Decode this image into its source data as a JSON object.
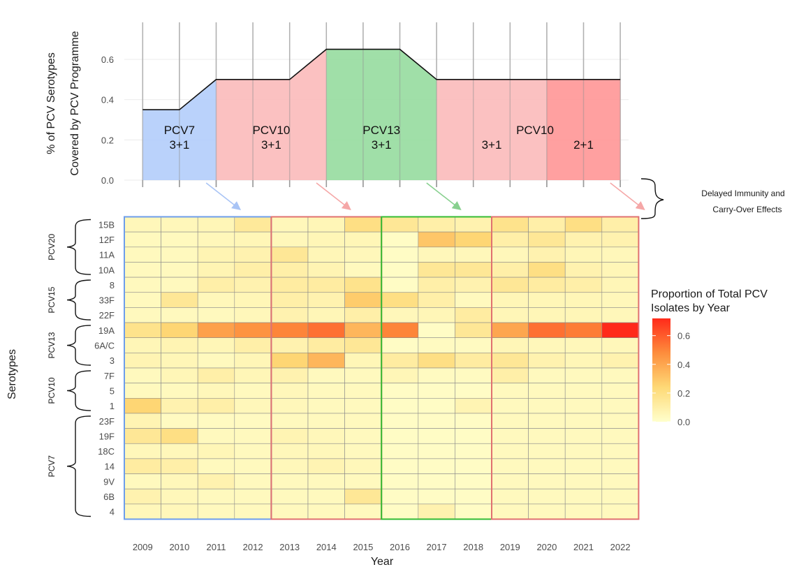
{
  "chart_data": [
    {
      "type": "area",
      "ylabel_line1": "% of PCV Serotypes",
      "ylabel_line2": "Covered by PCV Programme",
      "yticks": [
        "0.0",
        "0.2",
        "0.4",
        "0.6"
      ],
      "ylim": [
        0,
        0.7
      ],
      "years": [
        2009,
        2010,
        2011,
        2012,
        2013,
        2014,
        2015,
        2016,
        2017,
        2018,
        2019,
        2020,
        2021,
        2022
      ],
      "coverage_points": [
        {
          "x": 2009.5,
          "y": 0.35
        },
        {
          "x": 2010.5,
          "y": 0.35
        },
        {
          "x": 2011.5,
          "y": 0.5
        },
        {
          "x": 2012.5,
          "y": 0.5
        },
        {
          "x": 2013.5,
          "y": 0.5
        },
        {
          "x": 2014.5,
          "y": 0.65
        },
        {
          "x": 2015.5,
          "y": 0.65
        },
        {
          "x": 2016.5,
          "y": 0.65
        },
        {
          "x": 2017.5,
          "y": 0.5
        },
        {
          "x": 2018.5,
          "y": 0.5
        },
        {
          "x": 2019.5,
          "y": 0.5
        },
        {
          "x": 2020.5,
          "y": 0.5
        },
        {
          "x": 2021.5,
          "y": 0.5
        },
        {
          "x": 2022.5,
          "y": 0.5
        }
      ],
      "segments": [
        {
          "from": 2009.5,
          "to": 2011.5,
          "color": "#b3cdfb",
          "name": "PCV7",
          "schedule": "3+1"
        },
        {
          "from": 2011.5,
          "to": 2014.5,
          "color": "#fbbaba",
          "name": "PCV10",
          "schedule": "3+1"
        },
        {
          "from": 2014.5,
          "to": 2017.5,
          "color": "#96dc9e",
          "name": "PCV13",
          "schedule": "3+1"
        },
        {
          "from": 2017.5,
          "to": 2020.5,
          "color": "#fbbaba",
          "name": "",
          "schedule": "3+1"
        },
        {
          "from": 2020.5,
          "to": 2022.5,
          "color": "#ff9696",
          "name": "",
          "schedule": "2+1"
        }
      ],
      "extra_label": "PCV10",
      "annotation": {
        "line1": "Delayed Immunity and",
        "line2": "Carry-Over Effects"
      }
    },
    {
      "type": "heatmap",
      "xlabel": "Year",
      "ylabel": "Serotypes",
      "x": [
        2009,
        2010,
        2011,
        2012,
        2013,
        2014,
        2015,
        2016,
        2017,
        2018,
        2019,
        2020,
        2021,
        2022
      ],
      "y": [
        "15B",
        "12F",
        "11A",
        "10A",
        "8",
        "33F",
        "22F",
        "19A",
        "6A/C",
        "3",
        "7F",
        "5",
        "1",
        "23F",
        "19F",
        "18C",
        "14",
        "9V",
        "6B",
        "4"
      ],
      "values": [
        [
          0.05,
          0.05,
          0.06,
          0.14,
          0.05,
          0.06,
          0.2,
          0.15,
          0.1,
          0.08,
          0.18,
          0.1,
          0.2,
          0.1
        ],
        [
          0.04,
          0.04,
          0.05,
          0.06,
          0.05,
          0.06,
          0.06,
          0.02,
          0.3,
          0.25,
          0.1,
          0.15,
          0.08,
          0.08
        ],
        [
          0.04,
          0.04,
          0.07,
          0.08,
          0.15,
          0.06,
          0.05,
          0.02,
          0.05,
          0.05,
          0.05,
          0.08,
          0.06,
          0.05
        ],
        [
          0.04,
          0.04,
          0.07,
          0.1,
          0.1,
          0.07,
          0.04,
          0.02,
          0.15,
          0.15,
          0.1,
          0.2,
          0.08,
          0.06
        ],
        [
          0.04,
          0.04,
          0.1,
          0.08,
          0.12,
          0.12,
          0.18,
          0.02,
          0.1,
          0.08,
          0.15,
          0.12,
          0.1,
          0.06
        ],
        [
          0.04,
          0.15,
          0.05,
          0.06,
          0.1,
          0.08,
          0.28,
          0.2,
          0.1,
          0.04,
          0.06,
          0.06,
          0.06,
          0.05
        ],
        [
          0.04,
          0.04,
          0.04,
          0.05,
          0.08,
          0.06,
          0.1,
          0.05,
          0.06,
          0.12,
          0.06,
          0.06,
          0.06,
          0.05
        ],
        [
          0.18,
          0.25,
          0.42,
          0.46,
          0.5,
          0.55,
          0.35,
          0.5,
          0.02,
          0.15,
          0.4,
          0.55,
          0.52,
          0.72
        ],
        [
          0.06,
          0.07,
          0.06,
          0.1,
          0.08,
          0.12,
          0.15,
          0.02,
          0.03,
          0.03,
          0.06,
          0.05,
          0.05,
          0.05
        ],
        [
          0.07,
          0.06,
          0.04,
          0.06,
          0.25,
          0.35,
          0.06,
          0.12,
          0.2,
          0.12,
          0.15,
          0.08,
          0.06,
          0.08
        ],
        [
          0.04,
          0.06,
          0.1,
          0.06,
          0.08,
          0.04,
          0.04,
          0.06,
          0.03,
          0.03,
          0.1,
          0.04,
          0.04,
          0.04
        ],
        [
          0.04,
          0.04,
          0.05,
          0.04,
          0.05,
          0.04,
          0.04,
          0.02,
          0.02,
          0.02,
          0.04,
          0.04,
          0.04,
          0.04
        ],
        [
          0.25,
          0.08,
          0.1,
          0.05,
          0.05,
          0.04,
          0.04,
          0.02,
          0.02,
          0.07,
          0.04,
          0.04,
          0.04,
          0.04
        ],
        [
          0.07,
          0.03,
          0.03,
          0.03,
          0.04,
          0.04,
          0.04,
          0.02,
          0.02,
          0.02,
          0.04,
          0.04,
          0.04,
          0.04
        ],
        [
          0.15,
          0.2,
          0.04,
          0.04,
          0.07,
          0.05,
          0.04,
          0.02,
          0.02,
          0.02,
          0.04,
          0.04,
          0.04,
          0.04
        ],
        [
          0.05,
          0.05,
          0.06,
          0.04,
          0.05,
          0.05,
          0.04,
          0.02,
          0.02,
          0.02,
          0.04,
          0.04,
          0.04,
          0.04
        ],
        [
          0.12,
          0.1,
          0.04,
          0.04,
          0.05,
          0.07,
          0.05,
          0.02,
          0.02,
          0.02,
          0.04,
          0.04,
          0.04,
          0.04
        ],
        [
          0.04,
          0.05,
          0.08,
          0.04,
          0.04,
          0.04,
          0.04,
          0.02,
          0.02,
          0.02,
          0.04,
          0.04,
          0.04,
          0.04
        ],
        [
          0.08,
          0.05,
          0.04,
          0.04,
          0.04,
          0.04,
          0.15,
          0.02,
          0.02,
          0.02,
          0.04,
          0.04,
          0.04,
          0.04
        ],
        [
          0.05,
          0.05,
          0.04,
          0.04,
          0.04,
          0.04,
          0.04,
          0.02,
          0.08,
          0.02,
          0.04,
          0.04,
          0.04,
          0.04
        ]
      ],
      "groups": [
        {
          "name": "PCV20",
          "from": "15B",
          "to": "10A"
        },
        {
          "name": "PCV15",
          "from": "8",
          "to": "22F"
        },
        {
          "name": "PCV13",
          "from": "19A",
          "to": "3"
        },
        {
          "name": "PCV10",
          "from": "7F",
          "to": "1"
        },
        {
          "name": "PCV7",
          "from": "23F",
          "to": "4"
        }
      ],
      "period_boxes": [
        {
          "from": 2009,
          "to": 2012,
          "color": "#6d9eeb"
        },
        {
          "from": 2013,
          "to": 2015,
          "color": "#e07070"
        },
        {
          "from": 2016,
          "to": 2018,
          "color": "#33bb33"
        },
        {
          "from": 2019,
          "to": 2022,
          "color": "#e07070"
        }
      ],
      "legend": {
        "title_line1": "Proportion of Total PCV",
        "title_line2": "Isolates by Year",
        "ticks": [
          "0.0",
          "0.2",
          "0.4",
          "0.6"
        ],
        "range": [
          0,
          0.72
        ],
        "colors": [
          "#ffffcc",
          "#fed976",
          "#fd8d3c",
          "#ff2a1a"
        ]
      }
    }
  ]
}
